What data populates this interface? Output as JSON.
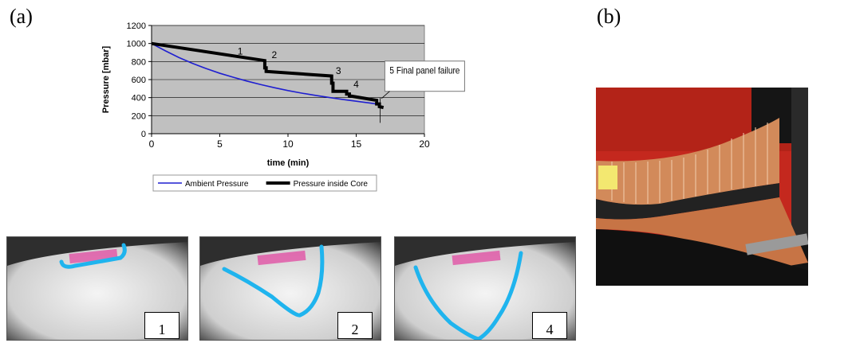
{
  "panel_labels": {
    "a": "(a)",
    "b": "(b)"
  },
  "chart_data": {
    "type": "line",
    "xlabel": "time (min)",
    "ylabel": "Pressure [mbar]",
    "xlim": [
      0,
      20
    ],
    "ylim": [
      0,
      1200
    ],
    "xticks": [
      0,
      5,
      10,
      15,
      20
    ],
    "yticks": [
      0,
      200,
      400,
      600,
      800,
      1000,
      1200
    ],
    "grid": "horizontal",
    "plot_background": "#c0c0c0",
    "legend_position": "bottom",
    "series": [
      {
        "name": "Ambient Pressure",
        "color": "#1f1fd0",
        "x": [
          0,
          1,
          2,
          3,
          4,
          5,
          6,
          7,
          8,
          9,
          10,
          11,
          12,
          13,
          14,
          15,
          16,
          16.7
        ],
        "y": [
          1000,
          920,
          845,
          780,
          722,
          670,
          625,
          583,
          545,
          510,
          478,
          450,
          425,
          402,
          380,
          360,
          340,
          325
        ]
      },
      {
        "name": "Pressure inside Core",
        "color": "#000000",
        "x": [
          0,
          8.3,
          8.3,
          8.4,
          8.4,
          13.2,
          13.2,
          13.3,
          13.3,
          14.3,
          14.3,
          14.5,
          14.5,
          16.5,
          16.5,
          16.7,
          16.7,
          17.0
        ],
        "y": [
          1000,
          810,
          730,
          730,
          690,
          640,
          560,
          560,
          470,
          470,
          440,
          440,
          420,
          370,
          330,
          330,
          300,
          290
        ]
      }
    ],
    "annotations": [
      {
        "text": "1",
        "x": 6.3,
        "y": 880
      },
      {
        "text": "2",
        "x": 8.8,
        "y": 840
      },
      {
        "text": "3",
        "x": 13.5,
        "y": 660
      },
      {
        "text": "4",
        "x": 14.8,
        "y": 510
      },
      {
        "text": "5 Final panel failure",
        "x": 17.0,
        "y": 340
      }
    ]
  },
  "stage_photos": [
    {
      "tag": "1"
    },
    {
      "tag": "2"
    },
    {
      "tag": "4"
    }
  ],
  "colors": {
    "damage_outline": "#1fb4ee",
    "marker_patch": "#e05aa8"
  }
}
